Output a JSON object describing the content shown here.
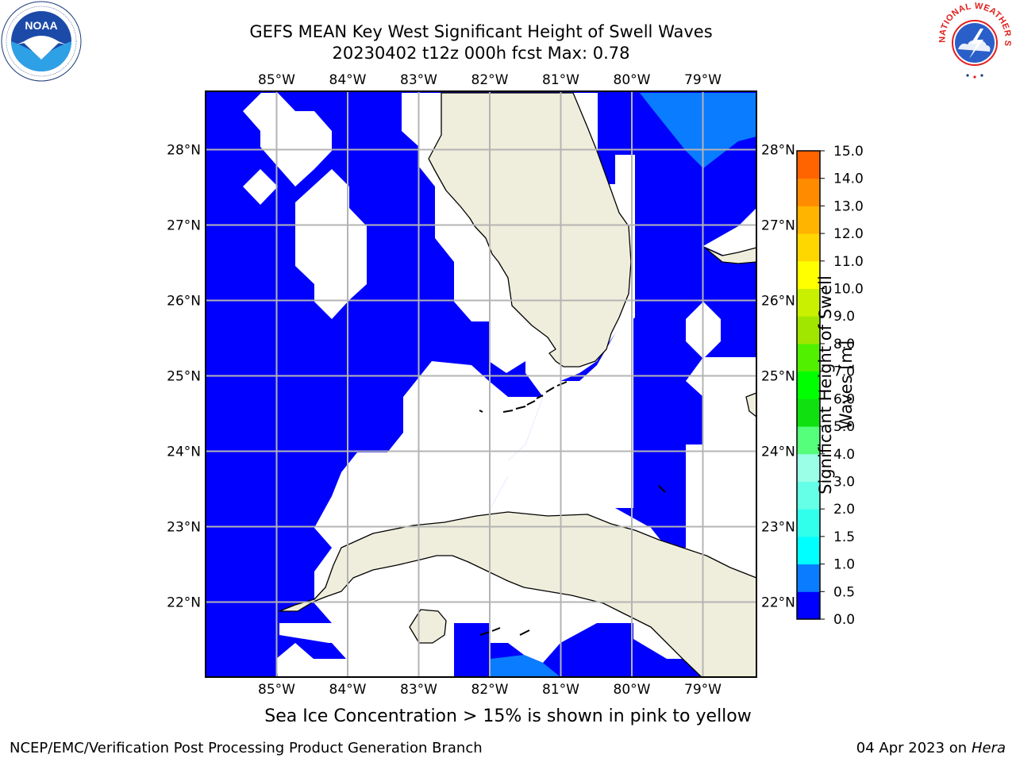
{
  "title": {
    "line1": "GEFS MEAN Key West Significant Height of Swell Waves",
    "line2": "20230402 t12z 000h fcst   Max: 0.78"
  },
  "map": {
    "lon_labels": [
      "85°W",
      "84°W",
      "83°W",
      "82°W",
      "81°W",
      "80°W",
      "79°W"
    ],
    "lat_labels": [
      "28°N",
      "27°N",
      "26°N",
      "25°N",
      "24°N",
      "23°N",
      "22°N"
    ],
    "lon_values": [
      -85,
      -84,
      -83,
      -82,
      -81,
      -80,
      -79
    ],
    "lat_values": [
      28,
      27,
      26,
      25,
      24,
      23,
      22
    ],
    "extent": {
      "lon_min": -86,
      "lon_max": -78.25,
      "lat_min": 21,
      "lat_max": 28.75
    },
    "colors": {
      "band_0_0_5": "#0000ff",
      "band_0_5_1_0": "#0a7cff",
      "land": "#efeedc",
      "grid": "#b4b4b4",
      "no_data": "#ffffff"
    }
  },
  "colorbar": {
    "label": "Significant Height of Swell Waves [m]",
    "ticks": [
      "0.0",
      "0.5",
      "1.0",
      "1.5",
      "2.0",
      "3.0",
      "4.0",
      "5.0",
      "6.0",
      "7.0",
      "8.0",
      "9.0",
      "10.0",
      "11.0",
      "12.0",
      "13.0",
      "14.0",
      "15.0"
    ],
    "colors": [
      "#0000ff",
      "#0a7cff",
      "#00ffff",
      "#32ffeb",
      "#64ffe6",
      "#9bffe8",
      "#55ff7b",
      "#10e010",
      "#00ff00",
      "#50f000",
      "#a0e600",
      "#c8f000",
      "#ffff00",
      "#ffd700",
      "#ffb400",
      "#ff8c00",
      "#ff6400",
      "#ff3200",
      "#ff0000"
    ]
  },
  "footer": {
    "note": "Sea Ice Concentration > 15% is shown in pink to yellow",
    "left": "NCEP/EMC/Verification Post Processing Product Generation Branch",
    "right_date": "04 Apr 2023 on",
    "right_host": "Hera"
  },
  "logos": {
    "noaa_text": "NOAA",
    "nws_text": "NATIONAL WEATHER SERVICE"
  }
}
